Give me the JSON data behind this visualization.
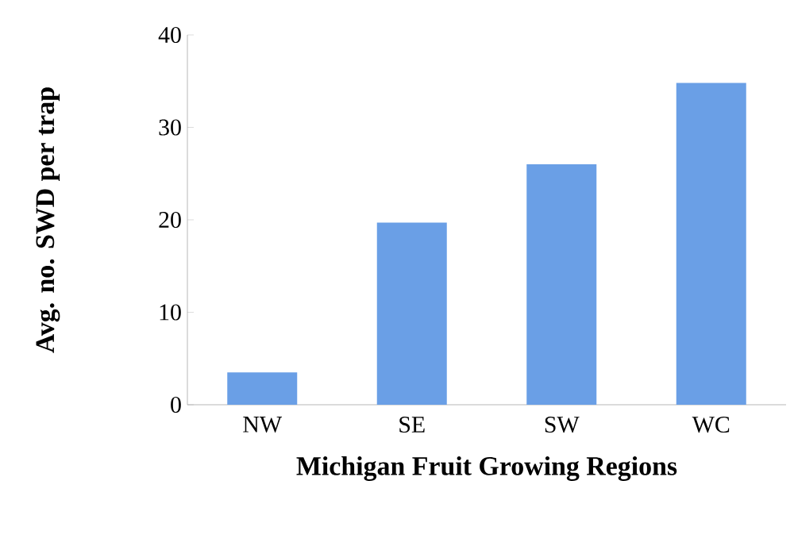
{
  "chart_data": {
    "type": "bar",
    "xlabel": "Michigan Fruit Growing Regions",
    "ylabel": "Avg. no. SWD per trap",
    "categories": [
      "NW",
      "SE",
      "SW",
      "WC"
    ],
    "values": [
      3.5,
      19.7,
      26,
      34.8
    ],
    "color": "#6a9fe6",
    "ylim": [
      0,
      40
    ],
    "yticks": [
      0,
      10,
      20,
      30,
      40
    ],
    "grid": false
  }
}
